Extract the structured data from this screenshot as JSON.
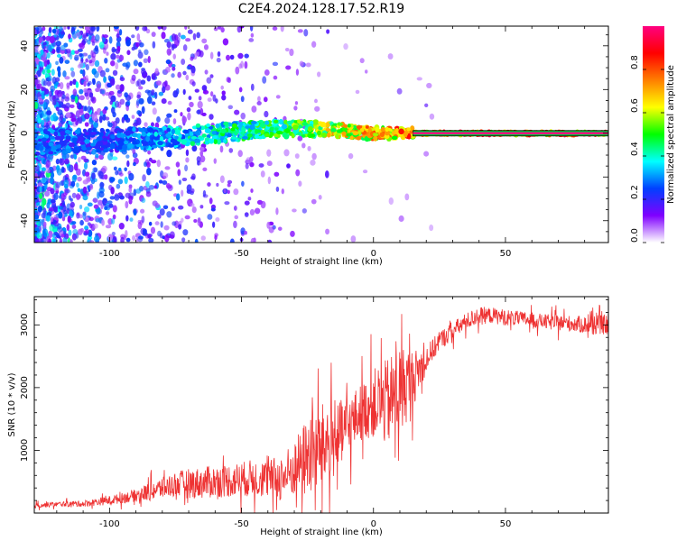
{
  "title": "C2E4.2024.128.17.52.R19",
  "chart_data": [
    {
      "type": "heatmap",
      "xlabel": "Height of straight line (km)",
      "ylabel": "Frequency (Hz)",
      "xlim": [
        -128.5,
        89
      ],
      "ylim": [
        -50,
        49
      ],
      "xticks": [
        -100,
        -50,
        0,
        50
      ],
      "yticks": [
        -40,
        -20,
        0,
        20,
        40
      ],
      "colorbar": {
        "label": "Normalized spectral amplitude",
        "range": [
          0,
          1
        ],
        "ticks": [
          "0.0",
          "0.2",
          "0.4",
          "0.6",
          "0.8"
        ],
        "colors": [
          "#ffffff",
          "#7f00ff",
          "#0040ff",
          "#00ffff",
          "#00ff00",
          "#ffff00",
          "#ff7f00",
          "#ff0000",
          "#ff0080"
        ]
      },
      "ridge": [
        {
          "x": -125,
          "y": -4,
          "amp": 0.35
        },
        {
          "x": -100,
          "y": -3,
          "amp": 0.3
        },
        {
          "x": -80,
          "y": -2,
          "amp": 0.4
        },
        {
          "x": -60,
          "y": 0,
          "amp": 0.5
        },
        {
          "x": -40,
          "y": 2,
          "amp": 0.55
        },
        {
          "x": -20,
          "y": 2,
          "amp": 0.7
        },
        {
          "x": 0,
          "y": 0,
          "amp": 0.85
        },
        {
          "x": 15,
          "y": 0,
          "amp": 0.95
        },
        {
          "x": 89,
          "y": 0,
          "amp": 1.0
        }
      ],
      "grid": false,
      "legend": "none"
    },
    {
      "type": "line",
      "xlabel": "Height of straight line (km)",
      "ylabel": "SNR (10 * v/v)",
      "xlim": [
        -128.5,
        89
      ],
      "ylim": [
        0,
        3450
      ],
      "xticks": [
        -100,
        -50,
        0,
        50
      ],
      "yticks": [
        1000,
        2000,
        3000
      ],
      "series": [
        {
          "color": "#ee3333",
          "x": [
            -128,
            -120,
            -110,
            -100,
            -90,
            -85,
            -80,
            -75,
            -70,
            -65,
            -60,
            -55,
            -50,
            -45,
            -40,
            -35,
            -30,
            -25,
            -20,
            -15,
            -10,
            -5,
            0,
            5,
            10,
            15,
            20,
            25,
            30,
            35,
            40,
            45,
            50,
            55,
            60,
            65,
            70,
            75,
            80,
            85,
            89
          ],
          "y": [
            120,
            140,
            150,
            200,
            280,
            340,
            400,
            460,
            470,
            480,
            500,
            520,
            540,
            560,
            540,
            560,
            700,
            900,
            1050,
            1150,
            1350,
            1600,
            1750,
            1750,
            1950,
            2150,
            2450,
            2750,
            2900,
            3050,
            3150,
            3150,
            3120,
            3100,
            3080,
            3050,
            3030,
            3020,
            3000,
            3000,
            3000
          ],
          "noise": [
            40,
            40,
            50,
            70,
            100,
            150,
            170,
            200,
            240,
            250,
            260,
            270,
            280,
            300,
            300,
            380,
            450,
            650,
            700,
            600,
            500,
            450,
            550,
            700,
            750,
            450,
            220,
            150,
            150,
            140,
            140,
            130,
            130,
            120,
            120,
            120,
            130,
            130,
            140,
            150,
            160
          ]
        }
      ],
      "grid": false,
      "legend": "none"
    }
  ]
}
